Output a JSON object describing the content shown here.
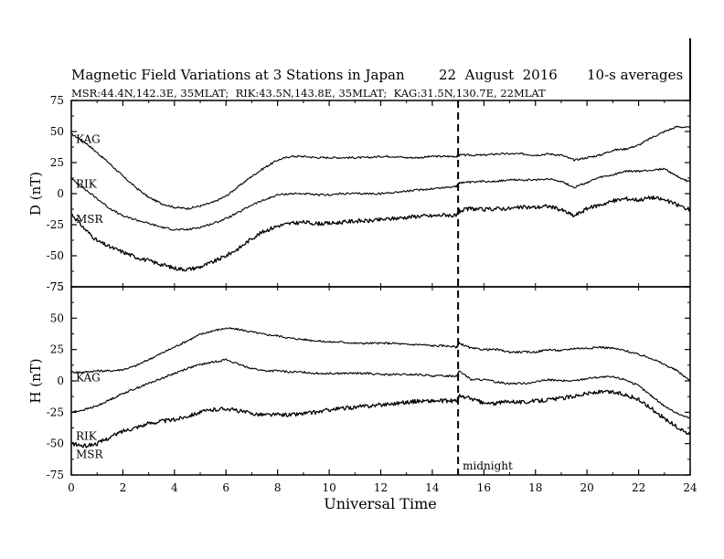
{
  "chart_data": {
    "type": "line",
    "title": "Magnetic Field Variations at 3 Stations in Japan",
    "date": "22  August  2016",
    "averaging": "10-s averages",
    "subtitle": "MSR:44.4N,142.3E, 35MLAT;  RIK:43.5N,143.8E, 35MLAT;  KAG:31.5N,130.7E, 22MLAT",
    "xlabel": "Universal Time",
    "xlim": [
      0,
      24
    ],
    "xticks": [
      "0",
      "2",
      "4",
      "6",
      "8",
      "10",
      "12",
      "14",
      "16",
      "18",
      "20",
      "22",
      "24"
    ],
    "annotation": {
      "text": "midnight",
      "x": 15
    },
    "panels": [
      {
        "ylabel": "D (nT)",
        "ylim": [
          -75,
          75
        ],
        "yticks": [
          "75",
          "50",
          "25",
          "0",
          "-25",
          "-50",
          "-75"
        ],
        "series": [
          {
            "name": "KAG",
            "x": [
              0,
              0.5,
              1,
              1.5,
              2,
              2.5,
              3,
              3.5,
              4,
              4.5,
              5,
              5.5,
              6,
              6.5,
              7,
              7.5,
              8,
              8.5,
              9,
              9.5,
              10,
              10.5,
              11,
              11.5,
              12,
              12.5,
              13,
              13.5,
              14,
              14.5,
              14.95,
              15.05,
              15.5,
              16,
              16.5,
              17,
              17.5,
              18,
              18.5,
              19,
              19.5,
              20,
              20.5,
              21,
              21.5,
              22,
              22.5,
              23,
              23.5,
              24
            ],
            "y": [
              48,
              42,
              33,
              24,
              14,
              5,
              -3,
              -8,
              -11,
              -12,
              -10,
              -7,
              -2,
              6,
              14,
              21,
              27,
              30,
              30,
              29,
              29,
              29,
              29,
              29,
              30,
              30,
              29,
              29,
              30,
              30,
              30,
              31,
              31,
              31,
              32,
              32,
              32,
              31,
              32,
              31,
              27,
              29,
              31,
              35,
              36,
              39,
              45,
              50,
              54,
              53
            ]
          },
          {
            "name": "RIK",
            "x": [
              0,
              0.5,
              1,
              1.5,
              2,
              2.5,
              3,
              3.5,
              4,
              4.5,
              5,
              5.5,
              6,
              6.5,
              7,
              7.5,
              8,
              8.5,
              9,
              9.5,
              10,
              10.5,
              11,
              11.5,
              12,
              12.5,
              13,
              13.5,
              14,
              14.5,
              14.95,
              15.05,
              15.5,
              16,
              16.5,
              17,
              17.5,
              18,
              18.5,
              19,
              19.5,
              20,
              20.5,
              21,
              21.5,
              22,
              22.5,
              23,
              23.5,
              24
            ],
            "y": [
              12,
              4,
              -4,
              -12,
              -18,
              -21,
              -24,
              -27,
              -29,
              -29,
              -27,
              -24,
              -20,
              -15,
              -9,
              -5,
              -1,
              0,
              0,
              -1,
              -1,
              0,
              0,
              0,
              0,
              1,
              2,
              3,
              4,
              5,
              6,
              9,
              9,
              10,
              10,
              11,
              11,
              11,
              12,
              10,
              5,
              9,
              13,
              15,
              18,
              18,
              19,
              20,
              14,
              9
            ]
          },
          {
            "name": "MSR",
            "x": [
              0,
              0.5,
              1,
              1.5,
              2,
              2.5,
              3,
              3.5,
              4,
              4.5,
              5,
              5.5,
              6,
              6.5,
              7,
              7.5,
              8,
              8.5,
              9,
              9.5,
              10,
              10.5,
              11,
              11.5,
              12,
              12.5,
              13,
              13.5,
              14,
              14.5,
              14.95,
              15.05,
              15.5,
              16,
              16.5,
              17,
              17.5,
              18,
              18.5,
              19,
              19.5,
              20,
              20.5,
              21,
              21.5,
              22,
              22.5,
              23,
              23.5,
              24
            ],
            "y": [
              -16,
              -28,
              -38,
              -43,
              -47,
              -51,
              -54,
              -57,
              -60,
              -61,
              -59,
              -55,
              -50,
              -44,
              -36,
              -30,
              -26,
              -24,
              -23,
              -24,
              -24,
              -23,
              -22,
              -22,
              -21,
              -20,
              -19,
              -18,
              -18,
              -17,
              -18,
              -14,
              -12,
              -13,
              -12,
              -12,
              -11,
              -11,
              -10,
              -13,
              -18,
              -12,
              -9,
              -6,
              -4,
              -5,
              -3,
              -5,
              -9,
              -13
            ]
          }
        ]
      },
      {
        "ylabel": "H (nT)",
        "ylim": [
          -75,
          75
        ],
        "yticks": [
          "75",
          "50",
          "25",
          "0",
          "-25",
          "-50",
          "-75"
        ],
        "series": [
          {
            "name": "KAG",
            "x": [
              0,
              0.5,
              1,
              1.5,
              2,
              2.5,
              3,
              3.5,
              4,
              4.5,
              5,
              5.5,
              6,
              6.5,
              7,
              7.5,
              8,
              8.5,
              9,
              9.5,
              10,
              10.5,
              11,
              11.5,
              12,
              12.5,
              13,
              13.5,
              14,
              14.5,
              14.95,
              15.05,
              15.5,
              16,
              16.5,
              17,
              17.5,
              18,
              18.5,
              19,
              19.5,
              20,
              20.5,
              21,
              21.5,
              22,
              22.5,
              23,
              23.5,
              24
            ],
            "y": [
              7,
              7,
              8,
              8,
              9,
              12,
              17,
              22,
              27,
              32,
              37,
              40,
              42,
              41,
              39,
              37,
              36,
              34,
              33,
              32,
              31,
              31,
              30,
              30,
              30,
              30,
              29,
              29,
              28,
              28,
              27,
              30,
              26,
              25,
              25,
              23,
              23,
              23,
              25,
              24,
              26,
              26,
              27,
              26,
              24,
              21,
              18,
              13,
              8,
              0
            ]
          },
          {
            "name": "RIK",
            "x": [
              0,
              0.5,
              1,
              1.5,
              2,
              2.5,
              3,
              3.5,
              4,
              4.5,
              5,
              5.5,
              6,
              6.5,
              7,
              7.5,
              8,
              8.5,
              9,
              9.5,
              10,
              10.5,
              11,
              11.5,
              12,
              12.5,
              13,
              13.5,
              14,
              14.5,
              14.95,
              15.05,
              15.5,
              16,
              16.5,
              17,
              17.5,
              18,
              18.5,
              19,
              19.5,
              20,
              20.5,
              21,
              21.5,
              22,
              22.5,
              23,
              23.5,
              24
            ],
            "y": [
              -25,
              -23,
              -20,
              -15,
              -10,
              -6,
              -2,
              2,
              6,
              10,
              13,
              15,
              17,
              13,
              10,
              8,
              8,
              7,
              7,
              6,
              6,
              6,
              6,
              6,
              5,
              5,
              5,
              5,
              4,
              4,
              4,
              8,
              1,
              1,
              -1,
              -2,
              -2,
              -1,
              1,
              0,
              0,
              2,
              3,
              3,
              1,
              -4,
              -12,
              -20,
              -26,
              -30
            ]
          },
          {
            "name": "MSR",
            "x": [
              0,
              0.5,
              1,
              1.5,
              2,
              2.5,
              3,
              3.5,
              4,
              4.5,
              5,
              5.5,
              6,
              6.5,
              7,
              7.5,
              8,
              8.5,
              9,
              9.5,
              10,
              10.5,
              11,
              11.5,
              12,
              12.5,
              13,
              13.5,
              14,
              14.5,
              14.95,
              15.05,
              15.5,
              16,
              16.5,
              17,
              17.5,
              18,
              18.5,
              19,
              19.5,
              20,
              20.5,
              21,
              21.5,
              22,
              22.5,
              23,
              23.5,
              24
            ],
            "y": [
              -50,
              -52,
              -50,
              -45,
              -40,
              -37,
              -34,
              -32,
              -31,
              -28,
              -25,
              -23,
              -22,
              -24,
              -26,
              -27,
              -27,
              -27,
              -26,
              -25,
              -23,
              -22,
              -21,
              -20,
              -19,
              -18,
              -17,
              -16,
              -16,
              -16,
              -16,
              -12,
              -14,
              -18,
              -18,
              -16,
              -17,
              -16,
              -15,
              -14,
              -12,
              -10,
              -9,
              -9,
              -11,
              -15,
              -22,
              -30,
              -37,
              -43
            ]
          }
        ]
      }
    ]
  }
}
